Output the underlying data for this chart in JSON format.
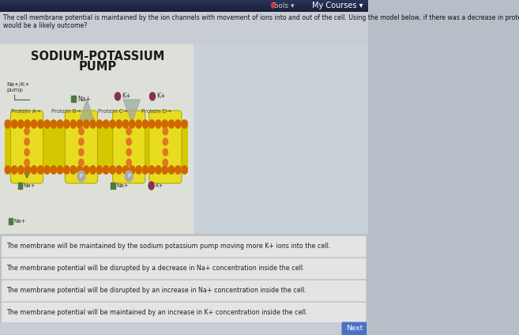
{
  "bg_color": "#b8bec8",
  "top_bar_color": "#2a3558",
  "top_bar_color2": "#1a1f38",
  "header_text": "My Courses ▾",
  "question_line1": "The cell membrane potential is maintained by the ion channels with movement of ions into and out of the cell. Using the model below, if there was a decrease in protein A, what",
  "question_line2": "would be a likely outcome?",
  "diagram_title_line1": "SODIUM-POTASSIUM",
  "diagram_title_line2": "PUMP",
  "answer_options": [
    "The membrane will be maintained by the sodium potassium pump moving more K+ ions into the cell.",
    "The membrane potential will be disrupted by a decrease in Na+ concentration inside the cell.",
    "The membrane potential will be disrupted by an increase in Na+ concentration inside the cell.",
    "The membrane potential will be maintained by an increase in K+ concentration inside the cell."
  ],
  "answer_box_color": "#e4e4e4",
  "answer_box_border": "#c8c8c8",
  "answer_text_color": "#222222",
  "question_text_color": "#111111",
  "question_bg": "#c8ccd4",
  "membrane_yellow": "#d4c800",
  "membrane_yellow2": "#e8dc20",
  "membrane_orange": "#d06800",
  "membrane_orange2": "#e07820",
  "ion_green": "#507840",
  "ion_red": "#883050",
  "arrow_color": "#909898",
  "label_color": "#333333",
  "protein_label_color": "#444444",
  "diagram_area_bg": "#c0c8d0",
  "diagram_panel_bg": "#dde0d8",
  "diagram_panel_bg2": "#c8d0d8",
  "tools_bar_color": "#252840",
  "next_btn_color": "#4a72c4",
  "bottom_bar_color": "#c8ccd4",
  "bottom_right_color": "#3a6abf"
}
